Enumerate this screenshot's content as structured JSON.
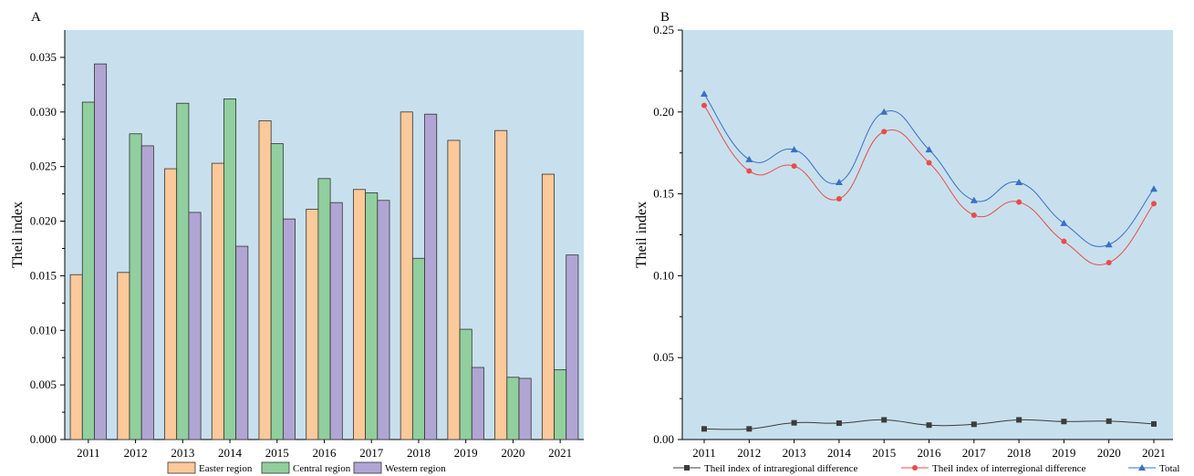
{
  "chart_data": [
    {
      "type": "bar",
      "panel_label": "A",
      "categories": [
        "2011",
        "2012",
        "2013",
        "2014",
        "2015",
        "2016",
        "2017",
        "2018",
        "2019",
        "2020",
        "2021"
      ],
      "series": [
        {
          "name": "Easter region",
          "color": "#fbc99a",
          "values": [
            0.0151,
            0.0153,
            0.0248,
            0.0253,
            0.0292,
            0.0211,
            0.0229,
            0.03,
            0.0274,
            0.0283,
            0.0243
          ]
        },
        {
          "name": "Central region",
          "color": "#91cf9e",
          "values": [
            0.0309,
            0.028,
            0.0308,
            0.0312,
            0.0271,
            0.0239,
            0.0226,
            0.0166,
            0.0101,
            0.0057,
            0.0064
          ]
        },
        {
          "name": "Western region",
          "color": "#b1a6d3",
          "values": [
            0.0344,
            0.0269,
            0.0208,
            0.0177,
            0.0202,
            0.0217,
            0.0219,
            0.0298,
            0.0066,
            0.0056,
            0.0169
          ]
        }
      ],
      "ylabel": "Theil index",
      "xlabel": "",
      "ylim": [
        0,
        0.0375
      ],
      "yticks": [
        "0.000",
        "0.005",
        "0.010",
        "0.015",
        "0.020",
        "0.025",
        "0.030",
        "0.035"
      ],
      "background": "#c8e0ed",
      "legend_position": "bottom"
    },
    {
      "type": "line",
      "panel_label": "B",
      "x": [
        "2011",
        "2012",
        "2013",
        "2014",
        "2015",
        "2016",
        "2017",
        "2018",
        "2019",
        "2020",
        "2021"
      ],
      "series": [
        {
          "name": "Theil index of intraregional difference",
          "color": "#3c3c3c",
          "marker": "square",
          "values": [
            0.0065,
            0.0065,
            0.0102,
            0.01,
            0.012,
            0.0088,
            0.0093,
            0.012,
            0.011,
            0.0112,
            0.0095
          ]
        },
        {
          "name": "Theil index of interregional difference",
          "color": "#e84c4c",
          "marker": "circle",
          "values": [
            0.204,
            0.164,
            0.167,
            0.147,
            0.188,
            0.169,
            0.137,
            0.145,
            0.121,
            0.108,
            0.144
          ]
        },
        {
          "name": "Total",
          "color": "#3a6fc4",
          "marker": "triangle",
          "values": [
            0.211,
            0.171,
            0.177,
            0.157,
            0.2,
            0.177,
            0.146,
            0.157,
            0.132,
            0.119,
            0.153
          ]
        }
      ],
      "ylabel": "Theil index",
      "xlabel": "",
      "ylim": [
        0,
        0.25
      ],
      "yticks": [
        "0.00",
        "0.05",
        "0.10",
        "0.15",
        "0.20",
        "0.25"
      ],
      "background": "#c8e0ed",
      "legend_position": "bottom"
    }
  ]
}
